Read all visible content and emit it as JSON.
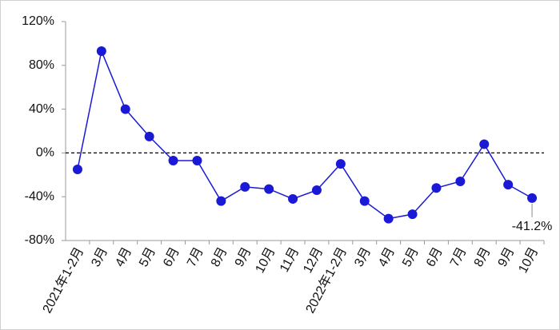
{
  "chart_data": {
    "type": "line",
    "categories": [
      "2021年1-2月",
      "3月",
      "4月",
      "5月",
      "6月",
      "7月",
      "8月",
      "9月",
      "10月",
      "11月",
      "12月",
      "2022年1-2月",
      "3月",
      "4月",
      "5月",
      "6月",
      "7月",
      "8月",
      "9月",
      "10月"
    ],
    "series": [
      {
        "color": "#1a1ad6",
        "values": [
          -15,
          93,
          40,
          15,
          -7,
          -7,
          -44,
          -31,
          -33,
          -42,
          -34,
          -10,
          -44,
          -60,
          -56,
          -32,
          -26,
          8,
          -29,
          -41.2
        ],
        "value_labels": [
          null,
          null,
          null,
          null,
          null,
          null,
          null,
          null,
          null,
          null,
          null,
          null,
          null,
          null,
          null,
          null,
          null,
          null,
          null,
          "-41.2%"
        ]
      }
    ],
    "ylim": [
      -80,
      120
    ],
    "yticks": [
      {
        "value": -80,
        "label": "-80%"
      },
      {
        "value": -40,
        "label": "-40%"
      },
      {
        "value": 0,
        "label": "0%"
      },
      {
        "value": 40,
        "label": "40%"
      },
      {
        "value": 80,
        "label": "80%"
      },
      {
        "value": 120,
        "label": "120%"
      }
    ],
    "reference_line": 0,
    "grid": false
  }
}
